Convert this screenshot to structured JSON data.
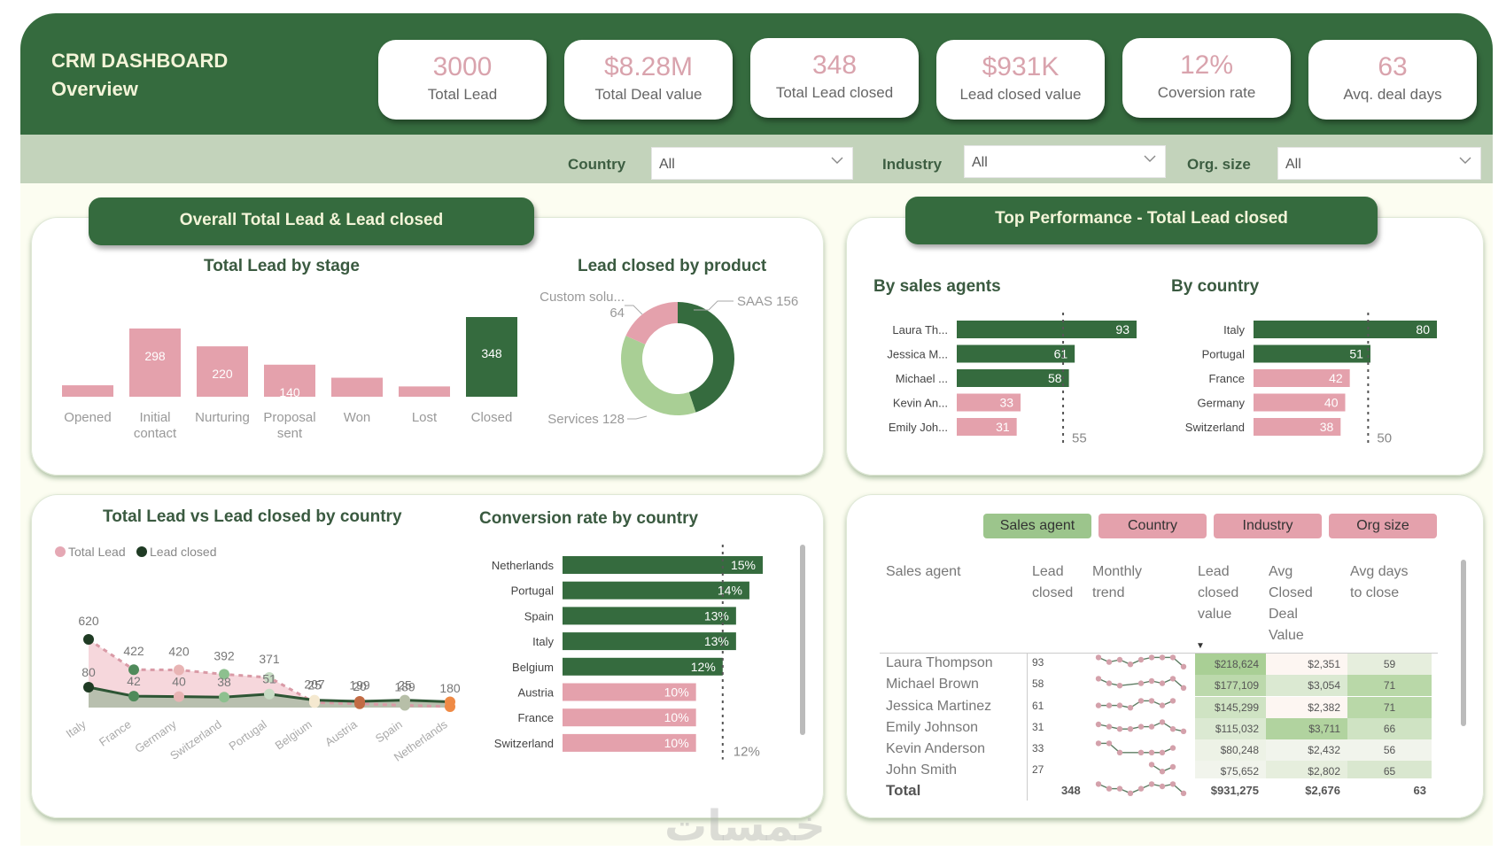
{
  "header": {
    "title": "CRM DASHBOARD",
    "subtitle": "Overview"
  },
  "kpis": [
    {
      "value": "3000",
      "label": "Total Lead"
    },
    {
      "value": "$8.28M",
      "label": "Total Deal value"
    },
    {
      "value": "348",
      "label": "Total Lead closed"
    },
    {
      "value": "$931K",
      "label": "Lead closed value"
    },
    {
      "value": "12%",
      "label": "Coversion rate"
    },
    {
      "value": "63",
      "label": "Avq. deal days"
    }
  ],
  "filters": [
    {
      "label": "Country",
      "value": "All"
    },
    {
      "label": "Industry",
      "value": "All"
    },
    {
      "label": "Org. size",
      "value": "All"
    }
  ],
  "sections": {
    "overall": "Overall Total Lead & Lead closed",
    "top": "Top Performance - Total Lead closed"
  },
  "colors": {
    "green": "#356b3e",
    "pink": "#e4a1ac",
    "light_green": "#9cc58c"
  },
  "chart_data": [
    {
      "type": "bar",
      "title": "Total Lead by stage",
      "categories": [
        "Opened",
        "Initial contact",
        "Nurturing",
        "Proposal sent",
        "Won",
        "Lost",
        "Closed"
      ],
      "category_lines": [
        [
          "Opened"
        ],
        [
          "Initial",
          "contact"
        ],
        [
          "Nurturing"
        ],
        [
          "Proposal",
          "sent"
        ],
        [
          "Won"
        ],
        [
          "Lost"
        ],
        [
          "Closed"
        ]
      ],
      "values": [
        50,
        298,
        220,
        140,
        83,
        45,
        348
      ],
      "labels": [
        "",
        "298",
        "220",
        "140",
        "83",
        "",
        "348"
      ],
      "highlight": [
        false,
        false,
        false,
        false,
        false,
        false,
        true
      ],
      "ylim": [
        0,
        348
      ]
    },
    {
      "type": "pie",
      "title": "Lead closed by product",
      "slices": [
        {
          "name": "SAAS",
          "value": 156,
          "label": "SAAS 156",
          "color": "#356b3e"
        },
        {
          "name": "Services",
          "value": 128,
          "label": "Services 128",
          "color": "#a9cf95"
        },
        {
          "name": "Custom solu...",
          "value": 64,
          "label": "Custom solu...",
          "sublabel": "64",
          "color": "#e4a1ac"
        }
      ],
      "donut": true
    },
    {
      "type": "bar",
      "orientation": "horizontal",
      "title": "By sales agents",
      "categories": [
        "Laura Th...",
        "Jessica M...",
        "Michael ...",
        "Kevin An...",
        "Emily Joh..."
      ],
      "values": [
        93,
        61,
        58,
        33,
        31
      ],
      "reference_line": 55,
      "reference_label": "55",
      "xlim": [
        0,
        93
      ]
    },
    {
      "type": "bar",
      "orientation": "horizontal",
      "title": "By country",
      "categories": [
        "Italy",
        "Portugal",
        "France",
        "Germany",
        "Switzerland"
      ],
      "values": [
        80,
        51,
        42,
        40,
        38
      ],
      "reference_line": 50,
      "reference_label": "50",
      "xlim": [
        0,
        80
      ]
    },
    {
      "type": "area",
      "title": "Total Lead vs Lead closed by country",
      "legend": [
        "Total Lead",
        "Lead closed"
      ],
      "legend_position": "top-left",
      "categories": [
        "Italy",
        "France",
        "Germany",
        "Switzerland",
        "Portugal",
        "Belgium",
        "Austria",
        "Spain",
        "Netherlands"
      ],
      "series": [
        {
          "name": "Total Lead",
          "values": [
            620,
            422,
            420,
            392,
            371,
            207,
            199,
            189,
            180
          ]
        },
        {
          "name": "Lead closed",
          "values": [
            80,
            42,
            40,
            38,
            51,
            25,
            20,
            25,
            18
          ]
        }
      ],
      "closed_labels": [
        "80",
        "42",
        "40",
        "38",
        "51",
        "25",
        "20",
        "25",
        ""
      ],
      "point_colors": [
        "#1f3b24",
        "#4f8a5a",
        "#e8b4b4",
        "#8dc08f",
        "#c7dcc4",
        "#f5e9d0",
        "#c26b44",
        "#b7bfa8",
        "#ef8a45"
      ],
      "ylim": [
        0,
        620
      ]
    },
    {
      "type": "bar",
      "orientation": "horizontal",
      "title": "Conversion rate by country",
      "categories": [
        "Netherlands",
        "Portugal",
        "Spain",
        "Italy",
        "Belgium",
        "Austria",
        "France",
        "Switzerland"
      ],
      "values": [
        15,
        14,
        13,
        13,
        12,
        10,
        10,
        10
      ],
      "labels": [
        "15%",
        "14%",
        "13%",
        "13%",
        "12%",
        "10%",
        "10%",
        "10%"
      ],
      "reference_line": 12,
      "reference_label": "12%",
      "xlim": [
        0,
        15
      ]
    }
  ],
  "table": {
    "buttons": [
      {
        "label": "Sales agent",
        "active": true
      },
      {
        "label": "Country",
        "active": false
      },
      {
        "label": "Industry",
        "active": false
      },
      {
        "label": "Org size",
        "active": false
      }
    ],
    "headers": [
      "Sales agent",
      "Lead\nclosed",
      "Monthly\ntrend",
      "Lead\nclosed\nvalue",
      "Avg\nClosed\nDeal\nValue",
      "Avg days\nto close"
    ],
    "sort_indicator": "▼",
    "rows": [
      {
        "agent": "Laura Thompson",
        "closed": "93",
        "trend": [
          6,
          4,
          5,
          3,
          5,
          6,
          6,
          6,
          2
        ],
        "value": "$218,624",
        "avg_value": "$2,351",
        "days": "59"
      },
      {
        "agent": "Michael Brown",
        "closed": "58",
        "trend": [
          6,
          4,
          3,
          null,
          4,
          5,
          4,
          6,
          2
        ],
        "value": "$177,109",
        "avg_value": "$3,054",
        "days": "71"
      },
      {
        "agent": "Jessica Martinez",
        "closed": "61",
        "trend": [
          4,
          4,
          4,
          3,
          6,
          6,
          4,
          6
        ],
        "value": "$145,299",
        "avg_value": "$2,382",
        "days": "71"
      },
      {
        "agent": "Emily Johnson",
        "closed": "31",
        "trend": [
          5,
          4,
          3,
          3,
          4,
          4,
          6,
          3,
          2
        ],
        "value": "$115,032",
        "avg_value": "$3,711",
        "days": "66"
      },
      {
        "agent": "Kevin Anderson",
        "closed": "33",
        "trend": [
          6,
          6,
          2,
          null,
          2,
          2,
          2,
          4
        ],
        "value": "$80,248",
        "avg_value": "$2,432",
        "days": "56"
      },
      {
        "agent": "John Smith",
        "closed": "27",
        "trend": [
          null,
          null,
          null,
          null,
          null,
          6,
          3,
          5
        ],
        "value": "$75,652",
        "avg_value": "$2,802",
        "days": "65"
      }
    ],
    "total": {
      "label": "Total",
      "closed": "348",
      "trend": [
        6,
        4,
        4,
        2,
        4,
        6,
        5,
        6,
        2
      ],
      "value": "$931,275",
      "avg_value": "$2,676",
      "days": "63"
    },
    "heat": {
      "value": [
        "#a9cf95",
        "#bcd9ac",
        "#cfe3c3",
        "#dbe9d2",
        "#edf2e6",
        "#f1f4ec"
      ],
      "avg_value": [
        "#fdf6f2",
        "#dbe9d2",
        "#fdf6f2",
        "#b1d39f",
        "#f1f4ec",
        "#e6eedd"
      ],
      "days": [
        "#e6eedd",
        "#b9d8a8",
        "#b9d8a8",
        "#cfe3c3",
        "#f1f4ec",
        "#d9e7cf"
      ]
    }
  },
  "watermark": "خمسات"
}
